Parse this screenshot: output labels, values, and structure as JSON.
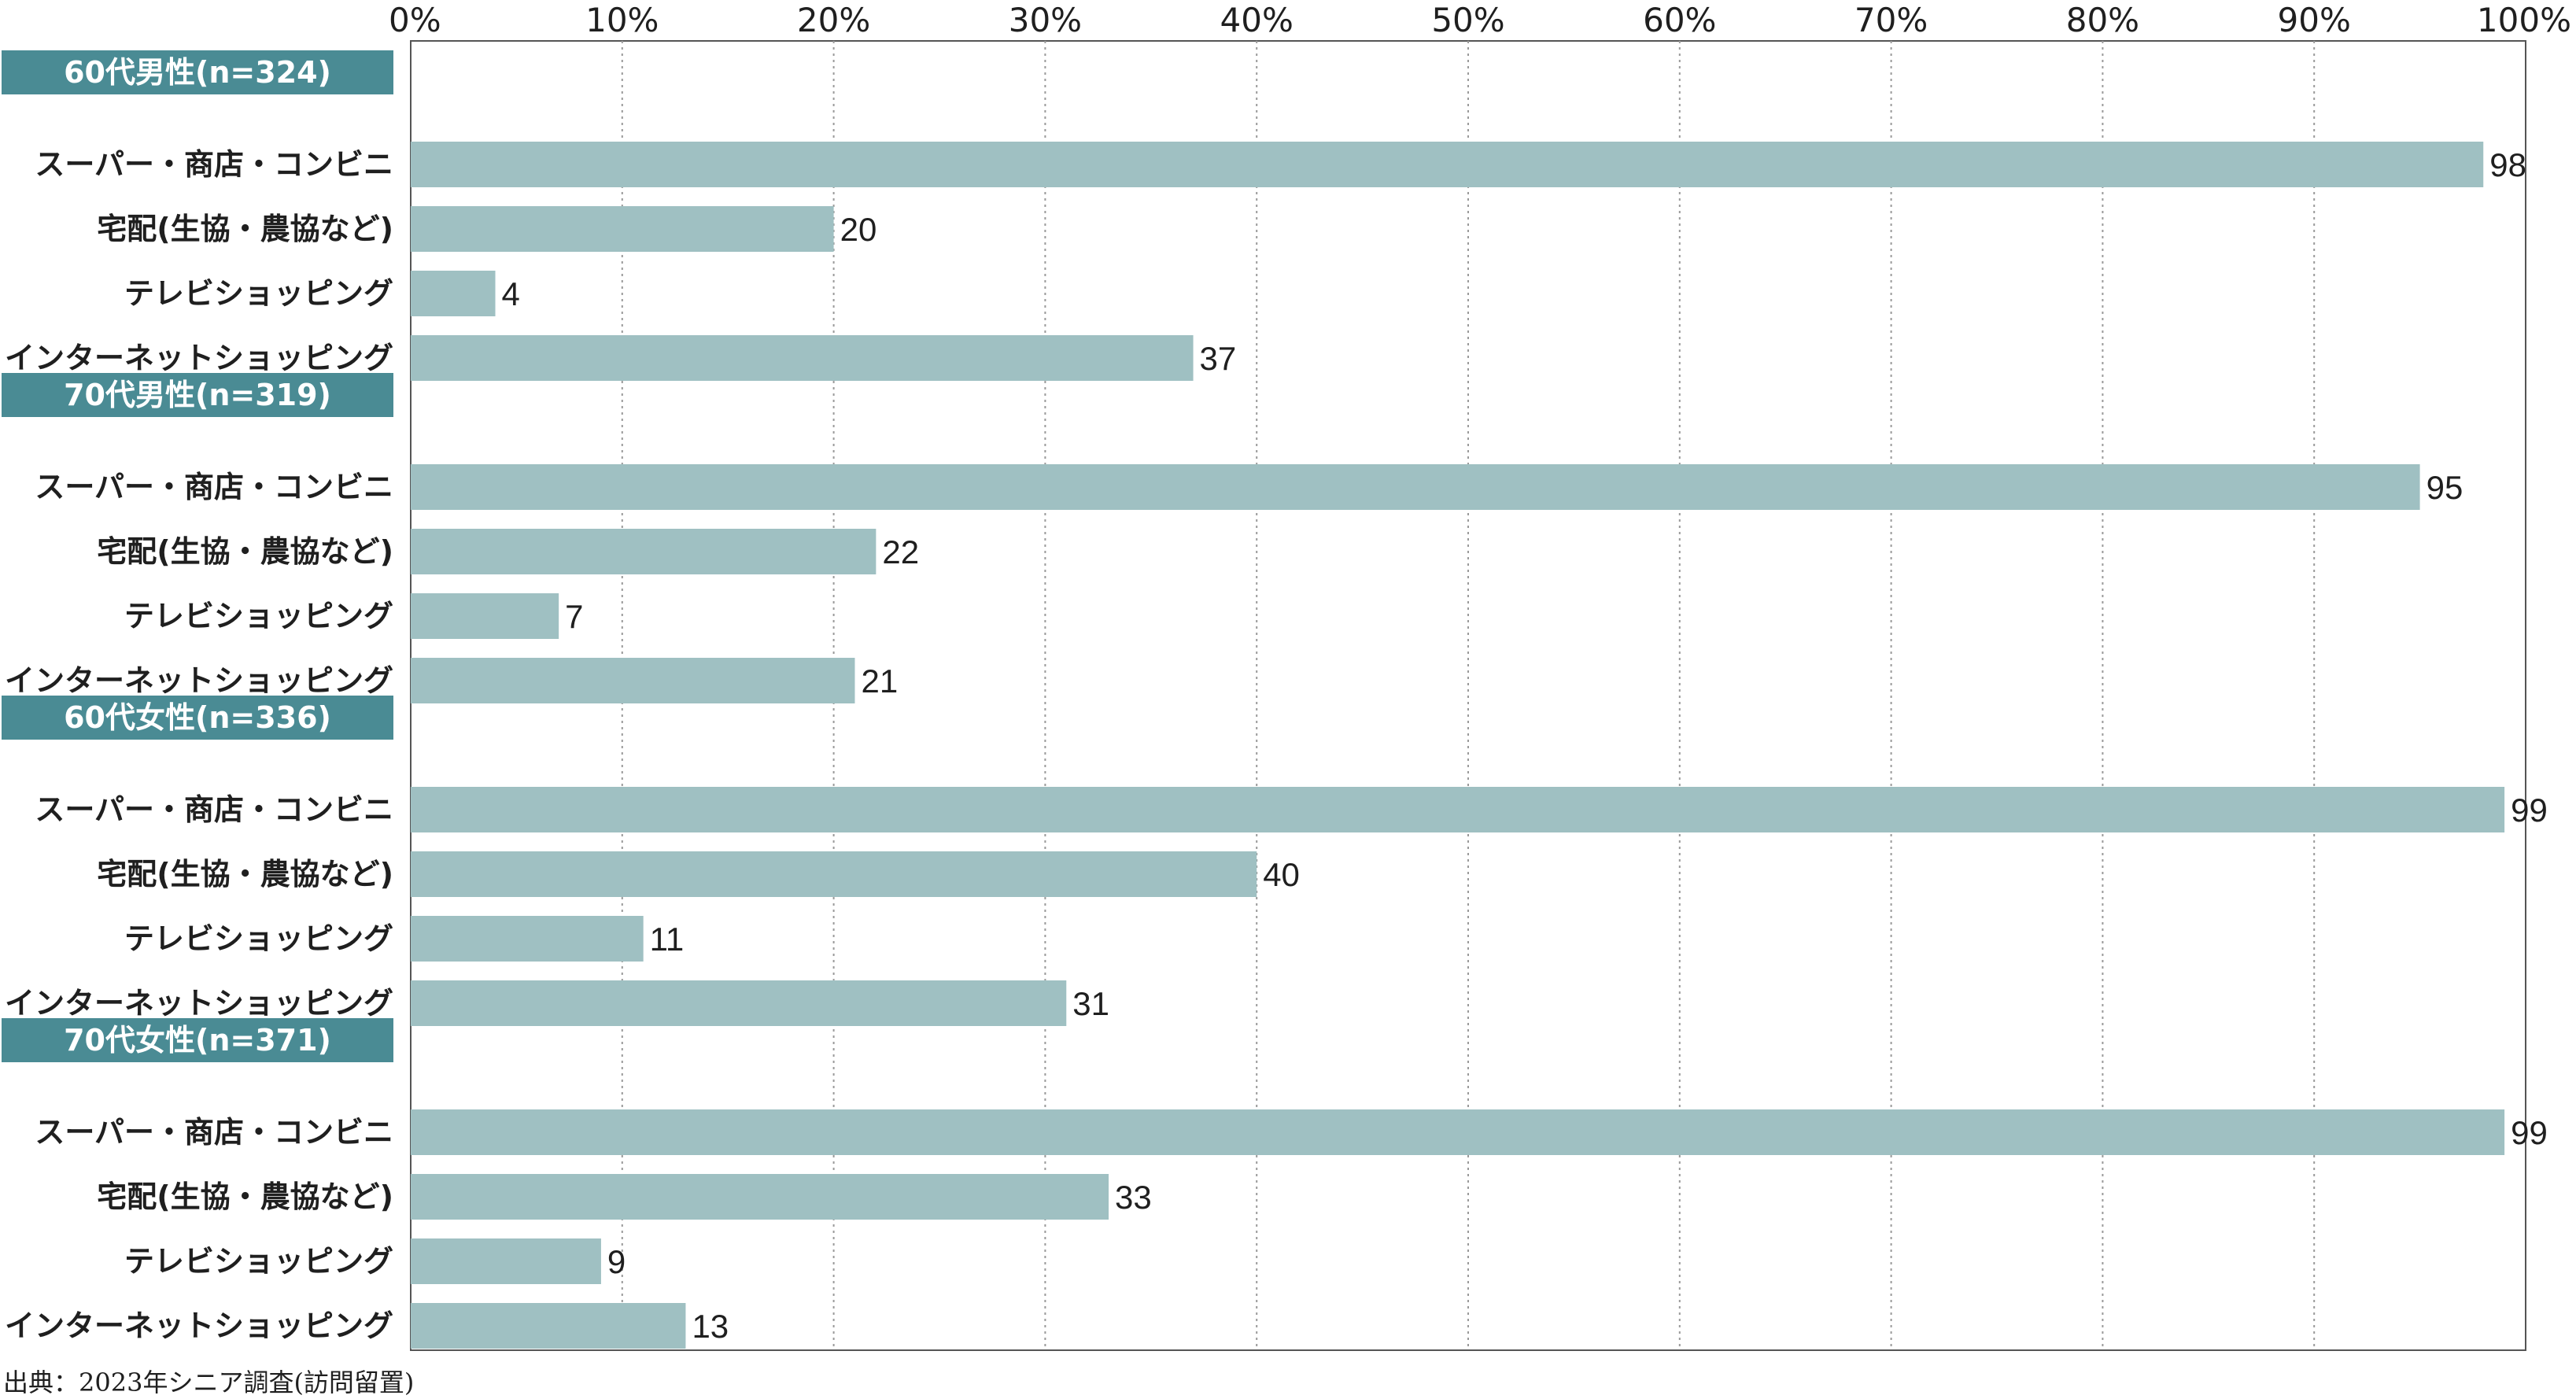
{
  "chart_data": {
    "type": "bar",
    "orientation": "horizontal",
    "xlim": [
      0,
      100
    ],
    "x_ticks": [
      "0%",
      "10%",
      "20%",
      "30%",
      "40%",
      "50%",
      "60%",
      "70%",
      "80%",
      "90%",
      "100%"
    ],
    "grid": "vertical dotted",
    "bar_color": "#9fc0c2",
    "group_color": "#4a8b94",
    "groups": [
      {
        "label": "60代男性(n=324)",
        "categories": [
          "スーパー・商店・コンビニ",
          "宅配(生協・農協など)",
          "テレビショッピング",
          "インターネットショッピング"
        ],
        "values": [
          98,
          20,
          4,
          37
        ]
      },
      {
        "label": "70代男性(n=319)",
        "categories": [
          "スーパー・商店・コンビニ",
          "宅配(生協・農協など)",
          "テレビショッピング",
          "インターネットショッピング"
        ],
        "values": [
          95,
          22,
          7,
          21
        ]
      },
      {
        "label": "60代女性(n=336)",
        "categories": [
          "スーパー・商店・コンビニ",
          "宅配(生協・農協など)",
          "テレビショッピング",
          "インターネットショッピング"
        ],
        "values": [
          99,
          40,
          11,
          31
        ]
      },
      {
        "label": "70代女性(n=371)",
        "categories": [
          "スーパー・商店・コンビニ",
          "宅配(生協・農協など)",
          "テレビショッピング",
          "インターネットショッピング"
        ],
        "values": [
          99,
          33,
          9,
          13
        ]
      }
    ]
  },
  "source": "出典：2023年シニア調査(訪問留置)"
}
